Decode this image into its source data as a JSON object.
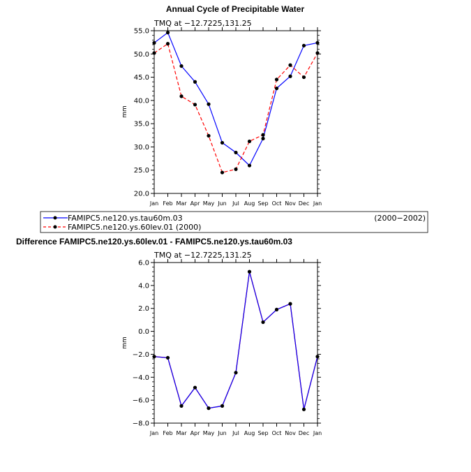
{
  "chart_data": [
    {
      "type": "line",
      "title": "Annual Cycle of Precipitable Water",
      "subtitle": "TMQ  at  −12.7225,131.25",
      "xlabel": "",
      "ylabel": "mm",
      "categories": [
        "Jan",
        "Feb",
        "Mar",
        "Apr",
        "May",
        "Jun",
        "Jul",
        "Aug",
        "Sep",
        "Oct",
        "Nov",
        "Dec",
        "Jan"
      ],
      "yticks": [
        "20.0",
        "25.0",
        "30.0",
        "35.0",
        "40.0",
        "45.0",
        "50.0",
        "55.0"
      ],
      "ylim": [
        20,
        55
      ],
      "series": [
        {
          "name": "FAMIPC5.ne120.ys.tau60m.03",
          "period": "(2000−2002)",
          "color": "#0000ff",
          "dash": "solid",
          "values": [
            52.4,
            54.6,
            47.4,
            44.0,
            39.2,
            30.9,
            28.8,
            26.0,
            31.8,
            42.6,
            45.2,
            51.8,
            52.4
          ]
        },
        {
          "name": "FAMIPC5.ne120.ys.60lev.01  (2000)",
          "color": "#ff0000",
          "dash": "dashed",
          "values": [
            50.2,
            52.2,
            40.9,
            39.1,
            32.4,
            24.5,
            25.2,
            31.2,
            32.6,
            44.5,
            47.6,
            45.0,
            50.2
          ]
        }
      ]
    },
    {
      "type": "line",
      "title": "Difference FAMIPC5.ne120.ys.60lev.01 - FAMIPC5.ne120.ys.tau60m.03",
      "subtitle": "TMQ  at  −12.7225,131.25",
      "xlabel": "",
      "ylabel": "mm",
      "categories": [
        "Jan",
        "Feb",
        "Mar",
        "Apr",
        "May",
        "Jun",
        "Jul",
        "Aug",
        "Sep",
        "Oct",
        "Nov",
        "Dec",
        "Jan"
      ],
      "yticks": [
        "−8.0",
        "−6.0",
        "−4.0",
        "−2.0",
        "0.0",
        "2.0",
        "4.0",
        "6.0"
      ],
      "ylim": [
        -8,
        6
      ],
      "series": [
        {
          "name": "difference",
          "color": "#0000ff",
          "overlay_color": "#ff0000",
          "values": [
            -2.2,
            -2.3,
            -6.5,
            -4.9,
            -6.7,
            -6.5,
            -3.6,
            5.2,
            0.8,
            1.9,
            2.4,
            -6.8,
            -2.2
          ]
        }
      ]
    }
  ]
}
